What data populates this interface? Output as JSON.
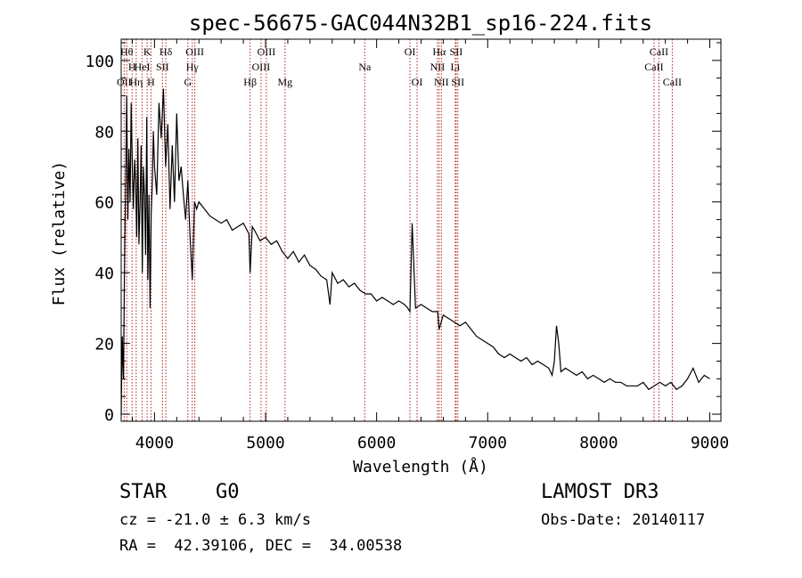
{
  "chart_data": {
    "type": "line",
    "title": "spec-56675-GAC044N32B1_sp16-224.fits",
    "xlabel": "Wavelength (Å)",
    "ylabel": "Flux (relative)",
    "xlim": [
      3700,
      9100
    ],
    "ylim": [
      -2,
      106
    ],
    "xticks": [
      4000,
      5000,
      6000,
      7000,
      8000,
      9000
    ],
    "xtick_labels": [
      "4000",
      "5000",
      "6000",
      "7000",
      "8000",
      "9000"
    ],
    "yticks": [
      0,
      20,
      40,
      60,
      80,
      100
    ],
    "ytick_labels": [
      "0",
      "20",
      "40",
      "60",
      "80",
      "100"
    ],
    "grid": false,
    "series": [
      {
        "name": "flux",
        "x": [
          3700,
          3710,
          3720,
          3730,
          3740,
          3750,
          3760,
          3770,
          3780,
          3790,
          3800,
          3810,
          3820,
          3830,
          3840,
          3850,
          3860,
          3870,
          3880,
          3890,
          3900,
          3910,
          3920,
          3930,
          3940,
          3950,
          3960,
          3970,
          3980,
          3990,
          4000,
          4020,
          4040,
          4060,
          4080,
          4100,
          4120,
          4140,
          4160,
          4180,
          4200,
          4220,
          4240,
          4260,
          4280,
          4300,
          4320,
          4340,
          4360,
          4380,
          4400,
          4450,
          4500,
          4550,
          4600,
          4650,
          4700,
          4750,
          4800,
          4850,
          4861,
          4880,
          4900,
          4950,
          5000,
          5050,
          5100,
          5150,
          5200,
          5250,
          5300,
          5350,
          5400,
          5450,
          5500,
          5550,
          5580,
          5600,
          5650,
          5700,
          5750,
          5800,
          5850,
          5900,
          5950,
          6000,
          6050,
          6100,
          6150,
          6200,
          6250,
          6280,
          6300,
          6320,
          6350,
          6400,
          6450,
          6500,
          6550,
          6563,
          6600,
          6650,
          6700,
          6750,
          6800,
          6850,
          6900,
          6950,
          7000,
          7050,
          7100,
          7150,
          7200,
          7250,
          7300,
          7350,
          7400,
          7450,
          7500,
          7550,
          7580,
          7600,
          7620,
          7640,
          7660,
          7700,
          7750,
          7800,
          7850,
          7900,
          7950,
          8000,
          8050,
          8100,
          8150,
          8200,
          8250,
          8300,
          8350,
          8400,
          8450,
          8500,
          8550,
          8600,
          8650,
          8700,
          8750,
          8800,
          8850,
          8900,
          8950,
          9000
        ],
        "values": [
          0,
          22,
          10,
          40,
          65,
          90,
          55,
          75,
          60,
          88,
          70,
          58,
          72,
          66,
          50,
          78,
          48,
          60,
          76,
          40,
          70,
          62,
          45,
          84,
          38,
          62,
          30,
          57,
          65,
          80,
          70,
          62,
          88,
          78,
          92,
          70,
          82,
          58,
          76,
          60,
          85,
          66,
          70,
          62,
          55,
          66,
          50,
          38,
          60,
          58,
          60,
          58,
          56,
          55,
          54,
          55,
          52,
          53,
          54,
          51,
          40,
          53,
          52,
          49,
          50,
          48,
          49,
          46,
          44,
          46,
          43,
          45,
          42,
          41,
          39,
          38,
          31,
          40,
          37,
          38,
          36,
          37,
          35,
          34,
          34,
          32,
          33,
          32,
          31,
          32,
          31,
          30,
          29,
          54,
          30,
          31,
          30,
          29,
          29,
          24,
          28,
          27,
          26,
          25,
          26,
          24,
          22,
          21,
          20,
          19,
          17,
          16,
          17,
          16,
          15,
          16,
          14,
          15,
          14,
          13,
          11,
          15,
          25,
          20,
          12,
          13,
          12,
          11,
          12,
          10,
          11,
          10,
          9,
          10,
          9,
          9,
          8,
          8,
          8,
          9,
          7,
          8,
          9,
          8,
          9,
          7,
          8,
          10,
          13,
          9,
          11,
          10
        ]
      }
    ],
    "lines": [
      {
        "x": 3727,
        "label": "OII",
        "row": 3
      },
      {
        "x": 3750,
        "label": "Hθ",
        "row": 1
      },
      {
        "x": 3798,
        "label": "H",
        "row": 2
      },
      {
        "x": 3835,
        "label": "Hη",
        "row": 3
      },
      {
        "x": 3889,
        "label": "HeI",
        "row": 2
      },
      {
        "x": 3934,
        "label": "K",
        "row": 1
      },
      {
        "x": 3968,
        "label": "H",
        "row": 3
      },
      {
        "x": 4072,
        "label": "SII",
        "row": 2
      },
      {
        "x": 4102,
        "label": "Hδ",
        "row": 1
      },
      {
        "x": 4300,
        "label": "G",
        "row": 3
      },
      {
        "x": 4340,
        "label": "Hγ",
        "row": 2
      },
      {
        "x": 4363,
        "label": "OIII",
        "row": 1
      },
      {
        "x": 4861,
        "label": "Hβ",
        "row": 3
      },
      {
        "x": 4959,
        "label": "OIII",
        "row": 2
      },
      {
        "x": 5007,
        "label": "OIII",
        "row": 1
      },
      {
        "x": 5175,
        "label": "Mg",
        "row": 3
      },
      {
        "x": 5893,
        "label": "Na",
        "row": 2
      },
      {
        "x": 6300,
        "label": "OI",
        "row": 1
      },
      {
        "x": 6364,
        "label": "OI",
        "row": 3
      },
      {
        "x": 6548,
        "label": "NII",
        "row": 2
      },
      {
        "x": 6563,
        "label": "Hα",
        "row": 1
      },
      {
        "x": 6583,
        "label": "NII",
        "row": 3
      },
      {
        "x": 6708,
        "label": "Li",
        "row": 2
      },
      {
        "x": 6716,
        "label": "SII",
        "row": 1
      },
      {
        "x": 6731,
        "label": "SII",
        "row": 3
      },
      {
        "x": 8498,
        "label": "CaII",
        "row": 2
      },
      {
        "x": 8542,
        "label": "CaII",
        "row": 1
      },
      {
        "x": 8662,
        "label": "CaII",
        "row": 3
      }
    ],
    "line_color": "#b22222"
  },
  "footer": {
    "class_label": "STAR",
    "subclass": "G0",
    "survey": "LAMOST DR3",
    "cz": "cz = -21.0 ± 6.3 km/s",
    "obs_date": "Obs-Date: 20140117",
    "coords": "RA =  42.39106, DEC =  34.00538"
  }
}
